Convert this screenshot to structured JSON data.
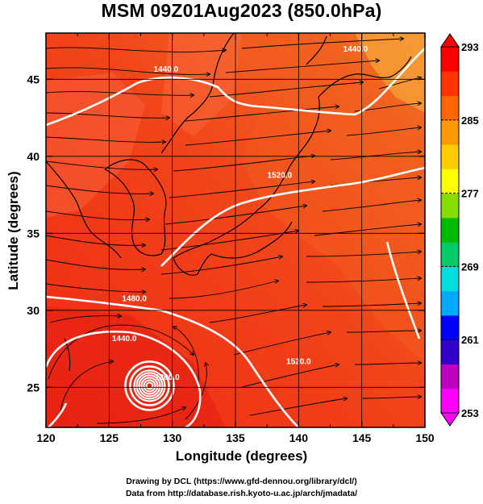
{
  "title": "MSM 09Z01Aug2023 (850.0hPa)",
  "xlabel": "Longitude (degrees)",
  "ylabel": "Latitude  (degrees)",
  "credit_line1": "Drawing by DCL (https://www.gfd-dennou.org/library/dcl/)",
  "credit_line2": "Data from http://database.rish.kyoto-u.ac.jp/arch/jmadata/",
  "colorbar_colors": [
    "#ff00ff",
    "#c000c0",
    "#3300cc",
    "#0000ff",
    "#00aaff",
    "#00dddd",
    "#00cc66",
    "#00bb00",
    "#88dd00",
    "#ffff00",
    "#ffcc00",
    "#ff9900",
    "#ff6600",
    "#ff3300",
    "#ff0000"
  ],
  "chart_data": {
    "type": "map",
    "x_range": [
      120,
      150
    ],
    "y_range": [
      22.4,
      48
    ],
    "x_ticks": [
      120,
      125,
      130,
      135,
      140,
      145,
      150
    ],
    "y_ticks": [
      25,
      30,
      35,
      40,
      45
    ],
    "colorbar": {
      "min": 253,
      "max": 293,
      "ticks": [
        253,
        261,
        269,
        277,
        285,
        293
      ]
    },
    "contour_labels": [
      {
        "text": "1440.0",
        "lon": 129.5,
        "lat": 45.5
      },
      {
        "text": "1440.0",
        "lon": 144.5,
        "lat": 46.8
      },
      {
        "text": "1520.0",
        "lon": 138.5,
        "lat": 38.6
      },
      {
        "text": "1480.0",
        "lon": 127.0,
        "lat": 30.6
      },
      {
        "text": "1440.0",
        "lon": 126.2,
        "lat": 28.0
      },
      {
        "text": "1200.0",
        "lon": 129.6,
        "lat": 25.5
      },
      {
        "text": "1520.0",
        "lon": 140.0,
        "lat": 26.5
      }
    ],
    "typhoon_center": {
      "lon": 128.2,
      "lat": 25.1
    }
  }
}
